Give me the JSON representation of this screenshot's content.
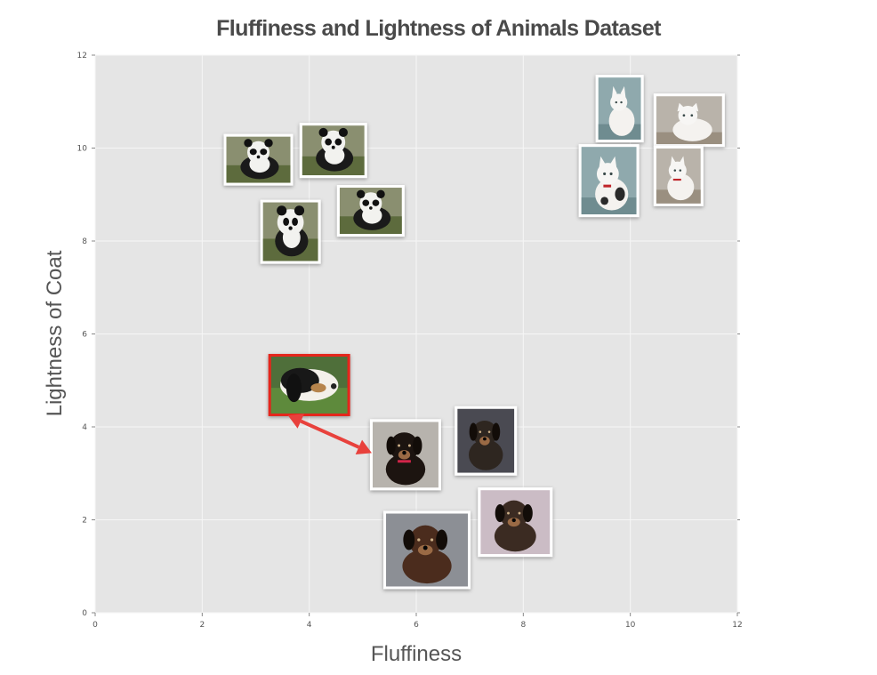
{
  "chart_data": {
    "type": "scatter",
    "title": "Fluffiness and Lightness of Animals Dataset",
    "xlabel": "Fluffiness",
    "ylabel": "Lightness of Coat",
    "xlim": [
      0,
      12
    ],
    "ylim": [
      0,
      12
    ],
    "xticks": [
      0,
      2,
      4,
      6,
      8,
      10,
      12
    ],
    "yticks": [
      0,
      2,
      4,
      6,
      8,
      10,
      12
    ],
    "grid": true,
    "background": "#e5e5e5",
    "points": [
      {
        "animal": "panda",
        "x": 3.05,
        "y": 9.75
      },
      {
        "animal": "panda",
        "x": 4.45,
        "y": 9.95
      },
      {
        "animal": "panda",
        "x": 3.65,
        "y": 8.2
      },
      {
        "animal": "panda",
        "x": 5.15,
        "y": 8.65
      },
      {
        "animal": "cat",
        "x": 9.8,
        "y": 10.85
      },
      {
        "animal": "cat",
        "x": 11.1,
        "y": 10.6
      },
      {
        "animal": "cat",
        "x": 9.6,
        "y": 9.3
      },
      {
        "animal": "cat",
        "x": 10.9,
        "y": 9.4
      },
      {
        "animal": "dog",
        "x": 4.0,
        "y": 4.9,
        "highlighted": true
      },
      {
        "animal": "dog",
        "x": 5.8,
        "y": 3.4
      },
      {
        "animal": "dog",
        "x": 7.3,
        "y": 3.7
      },
      {
        "animal": "dog",
        "x": 7.85,
        "y": 1.95
      },
      {
        "animal": "dog",
        "x": 6.2,
        "y": 1.35
      }
    ],
    "annotation": {
      "type": "double-arrow",
      "from_point": 8,
      "to_point": 9,
      "color": "#e8413c"
    },
    "highlight_color": "#e5261f"
  }
}
